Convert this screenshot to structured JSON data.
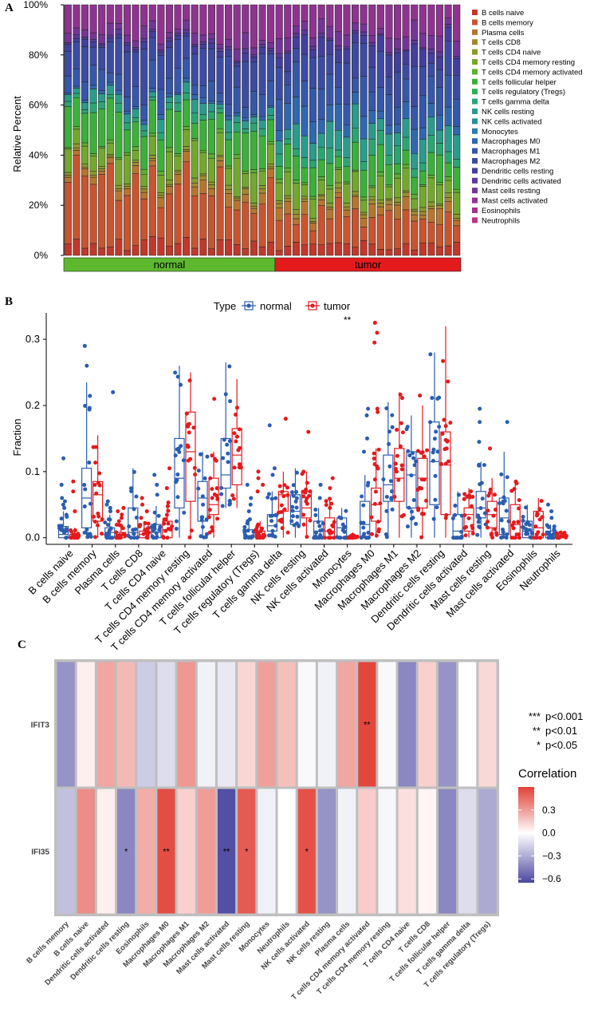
{
  "panel_labels": [
    "A",
    "B",
    "C"
  ],
  "chart_data": [
    {
      "type": "bar",
      "panel": "A",
      "stacked": true,
      "ylabel": "Relative Percent",
      "y_ticks": [
        "0%",
        "20%",
        "40%",
        "60%",
        "80%",
        "100%"
      ],
      "group_bar": [
        {
          "label": "normal",
          "count": 25,
          "color": "#5db82e"
        },
        {
          "label": "tumor",
          "count": 22,
          "color": "#e41a1c"
        }
      ],
      "cell_types": [
        "B cells naive",
        "B cells memory",
        "Plasma cells",
        "T cells CD8",
        "T cells CD4 naive",
        "T cells CD4 memory resting",
        "T cells CD4 memory activated",
        "T cells follicular helper",
        "T cells regulatory (Tregs)",
        "T cells gamma delta",
        "NK cells resting",
        "NK cells activated",
        "Monocytes",
        "Macrophages M0",
        "Macrophages M1",
        "Macrophages M2",
        "Dendritic cells resting",
        "Dendritic cells activated",
        "Mast cells resting",
        "Mast cells activated",
        "Eosinophils",
        "Neutrophils"
      ],
      "colors": [
        "#c0392b",
        "#c8552f",
        "#b8752e",
        "#a08a2d",
        "#8a9a2c",
        "#74a82c",
        "#5cb02e",
        "#3cb03a",
        "#2fae58",
        "#2aa673",
        "#2a9c8c",
        "#2a8ea0",
        "#2d7cac",
        "#3068b0",
        "#3658aa",
        "#3c4ca4",
        "#433f9e",
        "#5a3a9c",
        "#743596",
        "#8f3390",
        "#a6338a",
        "#b83486"
      ],
      "mean_composition_normal": [
        4,
        20,
        3,
        1,
        1,
        8,
        1,
        10,
        0,
        2,
        3,
        0,
        0,
        1,
        6,
        12,
        2,
        1,
        3,
        10,
        0,
        0
      ],
      "mean_composition_tumor": [
        3,
        9,
        3,
        1,
        1,
        6,
        1,
        7,
        0,
        4,
        6,
        0,
        0,
        6,
        9,
        9,
        5,
        1,
        4,
        8,
        0,
        0
      ],
      "samples_normal": 25,
      "samples_tumor": 22
    },
    {
      "type": "box",
      "panel": "B",
      "ylabel": "Fraction",
      "ylim": [
        -0.01,
        0.34
      ],
      "y_ticks": [
        "0.0",
        "0.1",
        "0.2",
        "0.3"
      ],
      "legend_title": "Type",
      "series": [
        {
          "name": "normal",
          "color": "#2a5db0"
        },
        {
          "name": "tumor",
          "color": "#e41a1c"
        }
      ],
      "significance": [
        {
          "category": "Monocytes",
          "label": "**"
        }
      ],
      "categories": [
        "B cells naive",
        "B cells memory",
        "Plasma cells",
        "T cells CD8",
        "T cells CD4 naive",
        "T cells CD4 memory resting",
        "T cells CD4 memory activated",
        "T cells follicular helper",
        "T cells regulatory (Tregs)",
        "T cells gamma delta",
        "NK cells resting",
        "NK cells activated",
        "Monocytes",
        "Macrophages M0",
        "Macrophages M1",
        "Macrophages M2",
        "Dendritic cells resting",
        "Dendritic cells activated",
        "Mast cells resting",
        "Mast cells activated",
        "Eosinophils",
        "Neutrophils"
      ],
      "normal": [
        {
          "q1": 0.0,
          "median": 0.005,
          "q3": 0.017,
          "wlo": 0.0,
          "whi": 0.04,
          "out": [
            0.045,
            0.05,
            0.055,
            0.06,
            0.08,
            0.12
          ]
        },
        {
          "q1": 0.015,
          "median": 0.06,
          "q3": 0.105,
          "wlo": 0.0,
          "whi": 0.235,
          "out": [
            0.26,
            0.29
          ]
        },
        {
          "q1": 0.0,
          "median": 0.008,
          "q3": 0.015,
          "wlo": 0.0,
          "whi": 0.035,
          "out": [
            0.04,
            0.045,
            0.05,
            0.055,
            0.22
          ]
        },
        {
          "q1": 0.0,
          "median": 0.008,
          "q3": 0.045,
          "wlo": 0.0,
          "whi": 0.105,
          "out": []
        },
        {
          "q1": 0.0,
          "median": 0.008,
          "q3": 0.02,
          "wlo": 0.0,
          "whi": 0.048,
          "out": [
            0.065,
            0.08,
            0.095
          ]
        },
        {
          "q1": 0.045,
          "median": 0.09,
          "q3": 0.15,
          "wlo": 0.0,
          "whi": 0.26,
          "out": []
        },
        {
          "q1": 0.025,
          "median": 0.06,
          "q3": 0.085,
          "wlo": 0.0,
          "whi": 0.13,
          "out": []
        },
        {
          "q1": 0.075,
          "median": 0.095,
          "q3": 0.15,
          "wlo": 0.045,
          "whi": 0.265,
          "out": []
        },
        {
          "q1": 0.0,
          "median": 0.003,
          "q3": 0.012,
          "wlo": 0.0,
          "whi": 0.028,
          "out": [
            0.04,
            0.05,
            0.06,
            0.08
          ]
        },
        {
          "q1": 0.01,
          "median": 0.018,
          "q3": 0.035,
          "wlo": 0.0,
          "whi": 0.07,
          "out": [
            0.095,
            0.105,
            0.17
          ]
        },
        {
          "q1": 0.02,
          "median": 0.04,
          "q3": 0.065,
          "wlo": 0.0,
          "whi": 0.105,
          "out": []
        },
        {
          "q1": 0.0,
          "median": 0.01,
          "q3": 0.025,
          "wlo": 0.0,
          "whi": 0.045,
          "out": [
            0.06,
            0.08
          ]
        },
        {
          "q1": 0.0,
          "median": 0.015,
          "q3": 0.03,
          "wlo": 0.0,
          "whi": 0.045,
          "out": []
        },
        {
          "q1": 0.0,
          "median": 0.02,
          "q3": 0.055,
          "wlo": 0.0,
          "whi": 0.095,
          "out": [
            0.13,
            0.15,
            0.185,
            0.195
          ]
        },
        {
          "q1": 0.055,
          "median": 0.08,
          "q3": 0.125,
          "wlo": 0.0,
          "whi": 0.205,
          "out": []
        },
        {
          "q1": 0.045,
          "median": 0.095,
          "q3": 0.13,
          "wlo": 0.0,
          "whi": 0.185,
          "out": []
        },
        {
          "q1": 0.05,
          "median": 0.115,
          "q3": 0.175,
          "wlo": 0.0,
          "whi": 0.28,
          "out": []
        },
        {
          "q1": 0.0,
          "median": 0.01,
          "q3": 0.035,
          "wlo": 0.0,
          "whi": 0.07,
          "out": []
        },
        {
          "q1": 0.03,
          "median": 0.045,
          "q3": 0.07,
          "wlo": 0.0,
          "whi": 0.115,
          "out": [
            0.145,
            0.175,
            0.195
          ]
        },
        {
          "q1": 0.005,
          "median": 0.03,
          "q3": 0.06,
          "wlo": 0.0,
          "whi": 0.13,
          "out": [
            0.175
          ]
        },
        {
          "q1": 0.0,
          "median": 0.01,
          "q3": 0.025,
          "wlo": 0.0,
          "whi": 0.05,
          "out": []
        },
        {
          "q1": 0.0,
          "median": 0.004,
          "q3": 0.01,
          "wlo": 0.0,
          "whi": 0.02,
          "out": [
            0.03,
            0.04,
            0.05
          ]
        }
      ],
      "tumor": [
        {
          "q1": 0.0,
          "median": 0.0,
          "q3": 0.005,
          "wlo": 0.0,
          "whi": 0.015,
          "out": [
            0.04,
            0.07,
            0.085
          ]
        },
        {
          "q1": 0.025,
          "median": 0.065,
          "q3": 0.085,
          "wlo": 0.0,
          "whi": 0.155,
          "out": []
        },
        {
          "q1": 0.0,
          "median": 0.003,
          "q3": 0.008,
          "wlo": 0.0,
          "whi": 0.02,
          "out": [
            0.025,
            0.03,
            0.035,
            0.04,
            0.045
          ]
        },
        {
          "q1": 0.0,
          "median": 0.005,
          "q3": 0.01,
          "wlo": 0.0,
          "whi": 0.025,
          "out": [
            0.03,
            0.04,
            0.05,
            0.06
          ]
        },
        {
          "q1": 0.0,
          "median": 0.012,
          "q3": 0.025,
          "wlo": 0.0,
          "whi": 0.055,
          "out": [
            0.075,
            0.105
          ]
        },
        {
          "q1": 0.055,
          "median": 0.13,
          "q3": 0.19,
          "wlo": 0.0,
          "whi": 0.25,
          "out": []
        },
        {
          "q1": 0.035,
          "median": 0.05,
          "q3": 0.09,
          "wlo": 0.0,
          "whi": 0.13,
          "out": [
            0.21
          ]
        },
        {
          "q1": 0.08,
          "median": 0.125,
          "q3": 0.165,
          "wlo": 0.045,
          "whi": 0.24,
          "out": []
        },
        {
          "q1": 0.0,
          "median": 0.003,
          "q3": 0.01,
          "wlo": 0.0,
          "whi": 0.025,
          "out": [
            0.07,
            0.08,
            0.09,
            0.1
          ]
        },
        {
          "q1": 0.04,
          "median": 0.065,
          "q3": 0.07,
          "wlo": 0.0,
          "whi": 0.1,
          "out": [
            0.18
          ]
        },
        {
          "q1": 0.03,
          "median": 0.045,
          "q3": 0.07,
          "wlo": 0.0,
          "whi": 0.1,
          "out": [
            0.16
          ]
        },
        {
          "q1": 0.0,
          "median": 0.01,
          "q3": 0.03,
          "wlo": 0.0,
          "whi": 0.06,
          "out": [
            0.075,
            0.09
          ]
        },
        {
          "q1": 0.0,
          "median": 0.0,
          "q3": 0.003,
          "wlo": 0.0,
          "whi": 0.008,
          "out": []
        },
        {
          "q1": 0.025,
          "median": 0.05,
          "q3": 0.075,
          "wlo": 0.0,
          "whi": 0.135,
          "out": [
            0.19,
            0.195,
            0.295,
            0.31,
            0.325
          ]
        },
        {
          "q1": 0.055,
          "median": 0.09,
          "q3": 0.135,
          "wlo": 0.0,
          "whi": 0.22,
          "out": []
        },
        {
          "q1": 0.045,
          "median": 0.09,
          "q3": 0.12,
          "wlo": 0.0,
          "whi": 0.2,
          "out": [
            0.215
          ]
        },
        {
          "q1": 0.035,
          "median": 0.11,
          "q3": 0.16,
          "wlo": 0.0,
          "whi": 0.32,
          "out": []
        },
        {
          "q1": 0.01,
          "median": 0.035,
          "q3": 0.045,
          "wlo": 0.0,
          "whi": 0.075,
          "out": []
        },
        {
          "q1": 0.015,
          "median": 0.035,
          "q3": 0.055,
          "wlo": 0.0,
          "whi": 0.09,
          "out": [
            0.135
          ]
        },
        {
          "q1": 0.0,
          "median": 0.02,
          "q3": 0.05,
          "wlo": 0.0,
          "whi": 0.085,
          "out": []
        },
        {
          "q1": 0.0,
          "median": 0.015,
          "q3": 0.04,
          "wlo": 0.0,
          "whi": 0.06,
          "out": []
        },
        {
          "q1": 0.0,
          "median": 0.002,
          "q3": 0.004,
          "wlo": 0.0,
          "whi": 0.008,
          "out": []
        }
      ]
    },
    {
      "type": "heatmap",
      "panel": "C",
      "rows": [
        "IFIT3",
        "IFI35"
      ],
      "columns": [
        "B cells memory",
        "B cells naive",
        "Dendritic cells activated",
        "Dendritic cells resting",
        "Eosinophils",
        "Macrophages M0",
        "Macrophages M1",
        "Macrophages M2",
        "Mast cells activated",
        "Mast cells resting",
        "Monocytes",
        "Neutrophils",
        "NK cells activated",
        "NK cells resting",
        "Plasma cells",
        "T cells CD4 memory activated",
        "T cells CD4 memory resting",
        "T cells CD4 naive",
        "T cells CD8",
        "T cells follicular helper",
        "T cells gamma delta",
        "T cells regulatory (Tregs)"
      ],
      "values": [
        [
          -0.38,
          0.05,
          0.28,
          0.22,
          -0.18,
          -0.12,
          0.33,
          -0.05,
          -0.08,
          0.13,
          0.3,
          0.2,
          -0.02,
          -0.05,
          0.28,
          0.58,
          -0.02,
          -0.42,
          0.15,
          -0.38,
          0.0,
          0.12
        ],
        [
          -0.22,
          0.36,
          0.05,
          -0.42,
          0.26,
          0.56,
          0.15,
          0.31,
          -0.62,
          0.52,
          -0.05,
          0.0,
          0.55,
          -0.38,
          -0.05,
          0.16,
          -0.03,
          0.1,
          0.03,
          -0.42,
          -0.12,
          -0.3
        ]
      ],
      "stars": [
        [
          "",
          "",
          "",
          "",
          "",
          "",
          "",
          "",
          "",
          "",
          "",
          "",
          "",
          "",
          "",
          "**",
          "",
          "",
          "",
          "",
          "",
          ""
        ],
        [
          "",
          "",
          "",
          "*",
          "",
          "**",
          "",
          "",
          "**",
          "*",
          "",
          "",
          "*",
          "",
          "",
          "",
          "",
          "",
          "",
          "",
          "",
          ""
        ]
      ],
      "sig_legend": [
        {
          "stars": "***",
          "label": "p<0.001"
        },
        {
          "stars": "**",
          "label": "p<0.01"
        },
        {
          "stars": "*",
          "label": "p<0.05"
        }
      ],
      "colorbar_title": "Correlation",
      "colorbar_range": [
        -0.65,
        0.6
      ],
      "colorbar_ticks": [
        0.3,
        0.0,
        -0.3,
        -0.6
      ],
      "colorbar_tick_labels": [
        "0.3",
        "0.0",
        "−0.3",
        "−0.6"
      ]
    }
  ]
}
